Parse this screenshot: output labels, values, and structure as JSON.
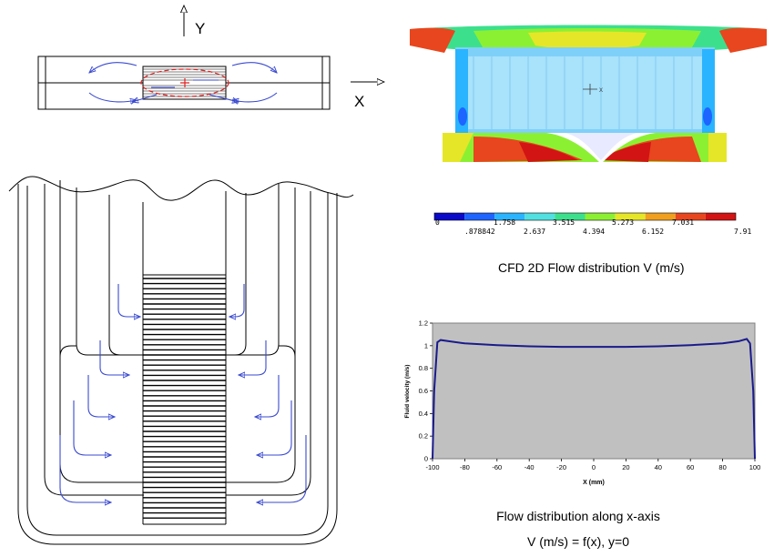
{
  "axes_diagram": {
    "y_label": "Y",
    "x_label": "X"
  },
  "cfd": {
    "caption": "CFD 2D Flow distribution  V (m/s)",
    "colors": [
      "#0a0ac8",
      "#1e64ff",
      "#2ab4ff",
      "#52e0e0",
      "#3ce08c",
      "#8cf032",
      "#e6e628",
      "#f0a01e",
      "#e8461e",
      "#d21414"
    ],
    "scale_top": [
      "0",
      "1.758",
      "3.515",
      "5.273",
      "7.031"
    ],
    "scale_bottom": [
      ".878842",
      "2.637",
      "4.394",
      "6.152",
      "7.91"
    ]
  },
  "graph": {
    "caption_line1": "Flow distribution along x-axis",
    "caption_line2": "V (m/s) = f(x), y=0"
  },
  "chart_data": {
    "type": "line",
    "title": "",
    "xlabel": "X (mm)",
    "ylabel": "Fluid velocity (m/s)",
    "xlim": [
      -100,
      100
    ],
    "ylim": [
      0,
      1.2
    ],
    "xticks": [
      -100,
      -80,
      -60,
      -40,
      -20,
      0,
      20,
      40,
      60,
      80,
      100
    ],
    "yticks": [
      0,
      0.2,
      0.4,
      0.6,
      0.8,
      1,
      1.2
    ],
    "background": "#c0c0c0",
    "line_color": "#1a1a8c",
    "grid": false,
    "series": [
      {
        "x": [
          -100,
          -99,
          -97,
          -95,
          -90,
          -80,
          -60,
          -40,
          -20,
          0,
          20,
          40,
          60,
          80,
          90,
          95,
          97,
          99,
          100
        ],
        "y": [
          0,
          0.6,
          1.03,
          1.05,
          1.04,
          1.02,
          1.005,
          0.995,
          0.99,
          0.99,
          0.99,
          0.995,
          1.005,
          1.02,
          1.04,
          1.06,
          1.02,
          0.6,
          0
        ]
      }
    ]
  }
}
